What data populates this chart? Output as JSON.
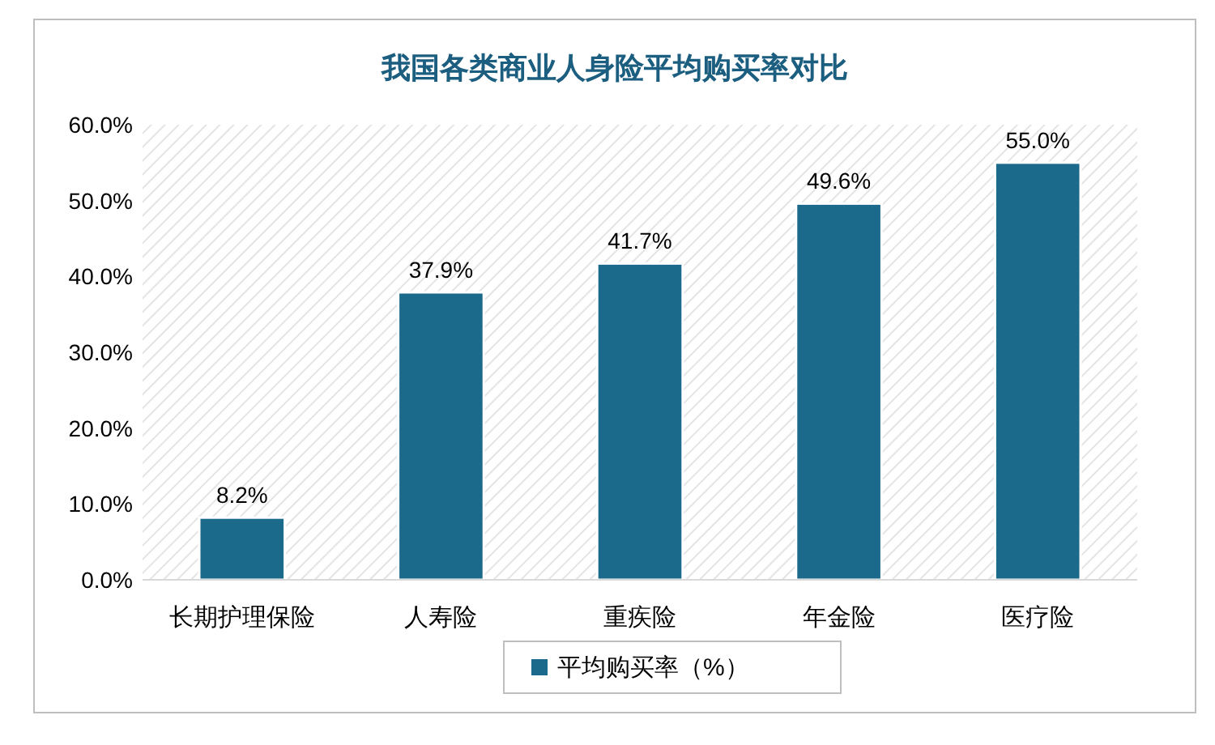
{
  "chart_data": {
    "type": "bar",
    "title": "我国各类商业人身险平均购买率对比",
    "categories": [
      "长期护理保险",
      "人寿险",
      "重疾险",
      "年金险",
      "医疗险"
    ],
    "series": [
      {
        "name": "平均购买率（%）",
        "color": "#1b6a8c",
        "values": [
          8.2,
          37.9,
          41.7,
          49.6,
          55.0
        ],
        "value_labels": [
          "8.2%",
          "37.9%",
          "41.7%",
          "49.6%",
          "55.0%"
        ]
      }
    ],
    "ylim": [
      0,
      60
    ],
    "yticks": [
      {
        "value": 0,
        "label": "0.0%"
      },
      {
        "value": 10,
        "label": "10.0%"
      },
      {
        "value": 20,
        "label": "20.0%"
      },
      {
        "value": 30,
        "label": "30.0%"
      },
      {
        "value": 40,
        "label": "40.0%"
      },
      {
        "value": 50,
        "label": "50.0%"
      },
      {
        "value": 60,
        "label": "60.0%"
      }
    ],
    "legend": "bottom",
    "grid": false
  }
}
